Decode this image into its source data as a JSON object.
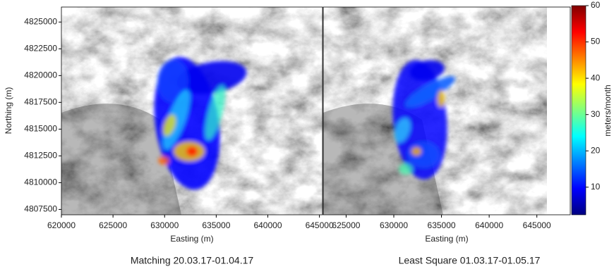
{
  "chart_data": [
    {
      "type": "image",
      "xlabel": "Easting (m)",
      "ylabel": "Northing (m)",
      "caption": "Matching  20.03.17-01.04.17",
      "xlim": [
        620000,
        645300
      ],
      "ylim": [
        4807000,
        4826400
      ],
      "xticks": [
        620000,
        625000,
        630000,
        635000,
        640000,
        645000
      ],
      "yticks": [
        4807500,
        4810000,
        4812500,
        4815000,
        4817500,
        4820000,
        4822500,
        4825000
      ]
    },
    {
      "type": "image",
      "xlabel": "Easting (m)",
      "caption": "Least Square 01.03.17-01.05.17",
      "xlim": [
        622600,
        648500
      ],
      "ylim": [
        4807000,
        4826400
      ],
      "xticks": [
        625000,
        630000,
        635000,
        640000,
        645000
      ]
    }
  ],
  "colorbar": {
    "label": "meters/month",
    "clim": [
      2.4,
      60
    ],
    "ticks": [
      10,
      20,
      30,
      40,
      50,
      60
    ],
    "colormap": "jet"
  }
}
